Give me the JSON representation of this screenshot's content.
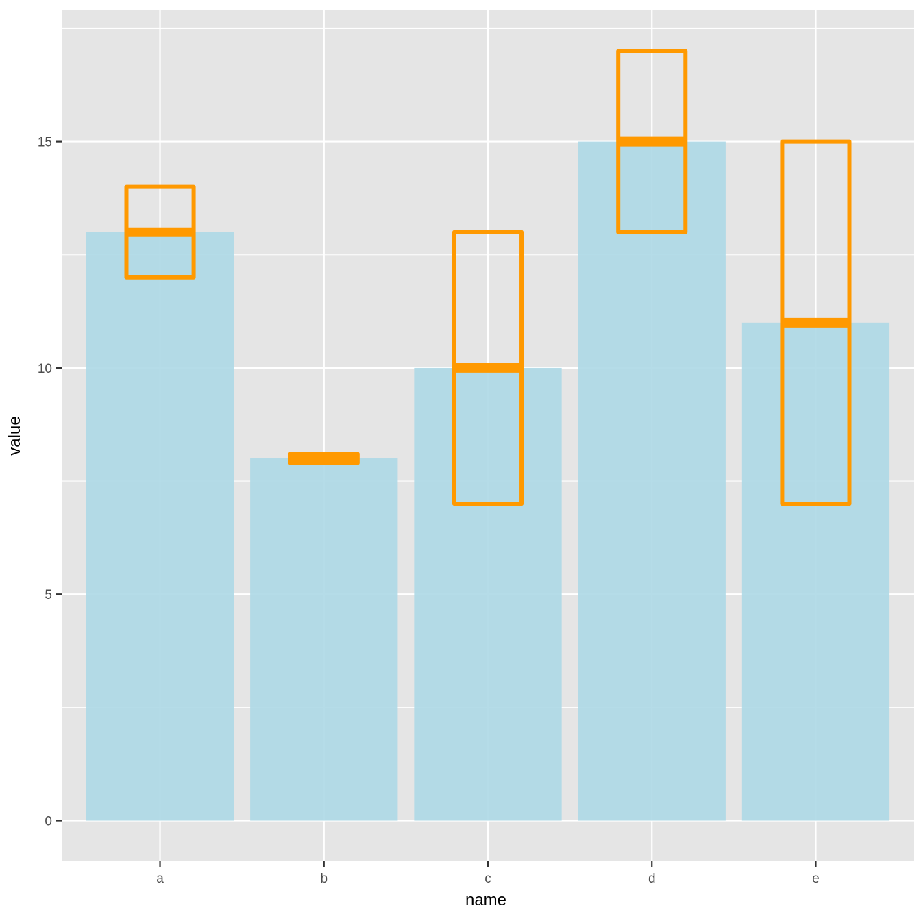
{
  "chart_data": {
    "type": "bar",
    "title": "",
    "xlabel": "name",
    "ylabel": "value",
    "categories": [
      "a",
      "b",
      "c",
      "d",
      "e"
    ],
    "values": [
      13,
      8,
      10,
      15,
      11
    ],
    "crossbar": {
      "center": [
        13,
        8,
        10,
        15,
        11
      ],
      "lower": [
        12,
        7.9,
        7,
        13,
        7
      ],
      "upper": [
        14,
        8.1,
        13,
        17,
        15
      ]
    },
    "ylim": [
      -0.9,
      17.9
    ],
    "yticks": [
      0,
      5,
      10,
      15
    ],
    "grid": true,
    "colors": {
      "panel": "#e5e5e5",
      "grid": "#ffffff",
      "bar": "#add8e6",
      "crossbar": "#ff9900"
    }
  }
}
